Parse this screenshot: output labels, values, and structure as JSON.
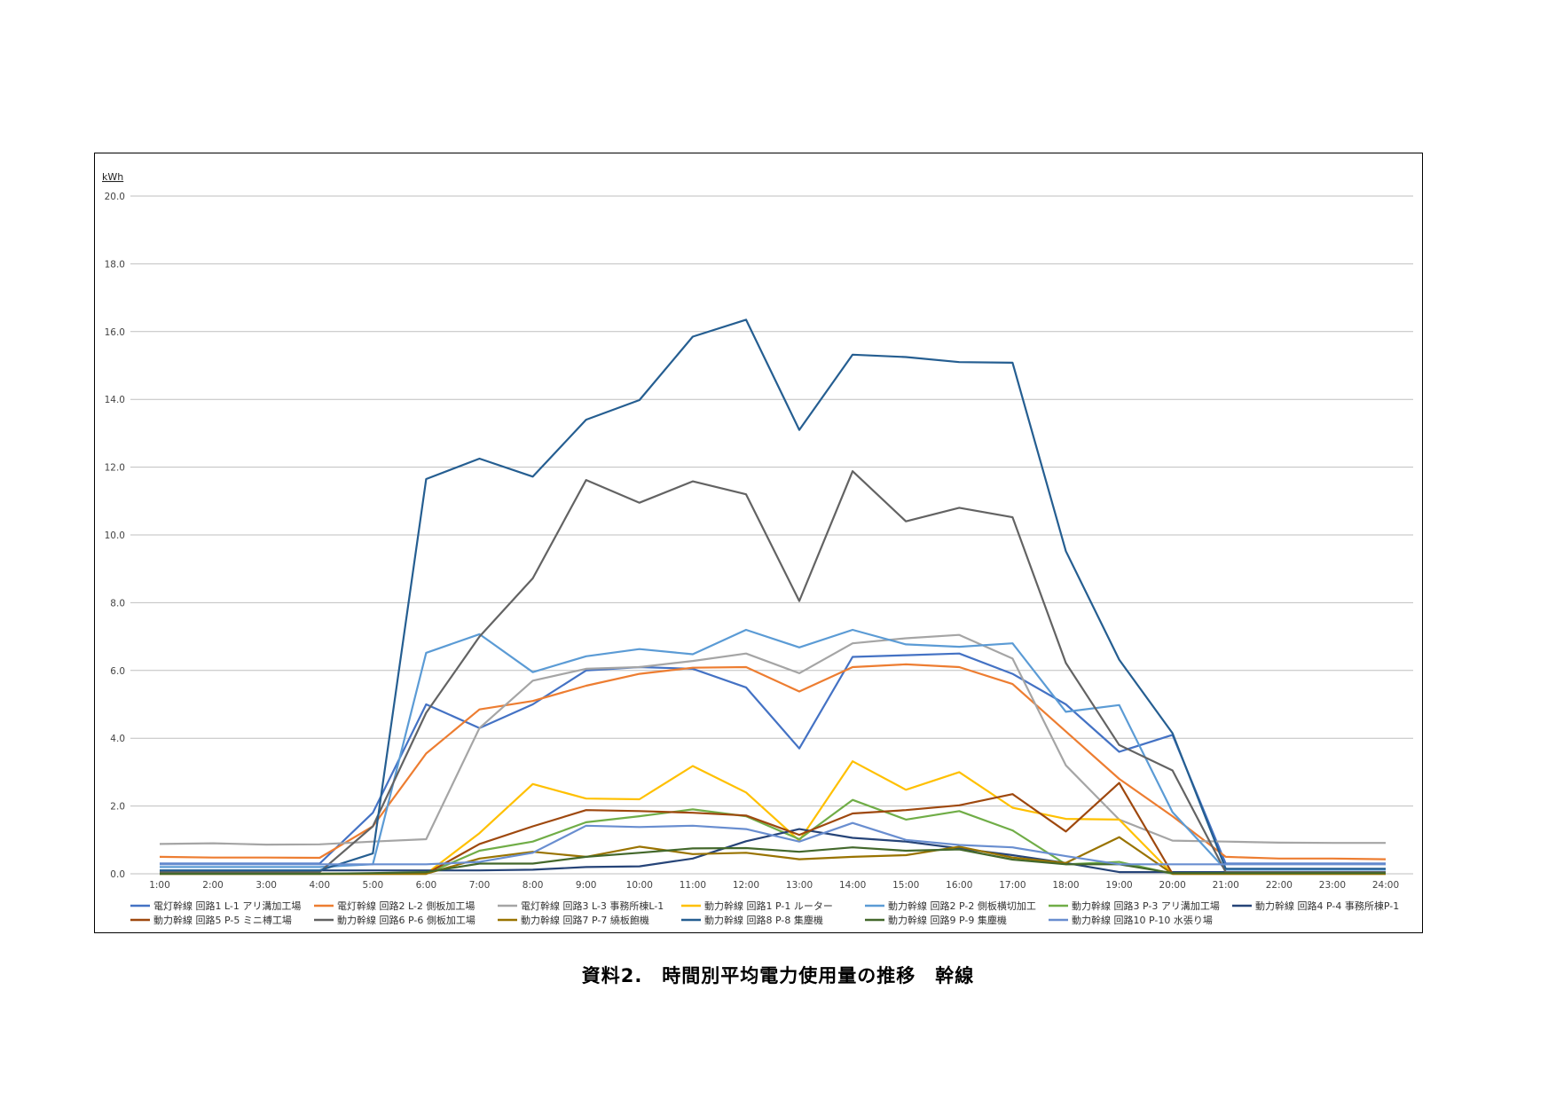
{
  "caption": "資料2.　時間別平均電力使用量の推移　幹線",
  "chart_data": {
    "type": "line",
    "ylabel_unit": "kWh",
    "ylim": [
      0,
      20
    ],
    "yticks": [
      "0.0",
      "2.0",
      "4.0",
      "6.0",
      "8.0",
      "10.0",
      "12.0",
      "14.0",
      "16.0",
      "18.0",
      "20.0"
    ],
    "grid": true,
    "legend_position": "bottom",
    "categories": [
      "1:00",
      "2:00",
      "3:00",
      "4:00",
      "5:00",
      "6:00",
      "7:00",
      "8:00",
      "9:00",
      "10:00",
      "11:00",
      "12:00",
      "13:00",
      "14:00",
      "15:00",
      "16:00",
      "17:00",
      "18:00",
      "19:00",
      "20:00",
      "21:00",
      "22:00",
      "23:00",
      "24:00"
    ],
    "series": [
      {
        "name": "電灯幹線 回路1 L-1 アリ溝加工場",
        "color": "#4472c4",
        "values": [
          0.3,
          0.3,
          0.3,
          0.3,
          1.8,
          5.0,
          4.3,
          5.0,
          6.0,
          6.1,
          6.05,
          5.5,
          3.7,
          6.4,
          6.45,
          6.5,
          5.9,
          5.0,
          3.6,
          4.1,
          0.3,
          0.3,
          0.3,
          0.3
        ]
      },
      {
        "name": "電灯幹線 回路2 L-2 側板加工場",
        "color": "#ed7d31",
        "values": [
          0.5,
          0.48,
          0.48,
          0.47,
          1.4,
          3.55,
          4.85,
          5.1,
          5.55,
          5.9,
          6.08,
          6.1,
          5.38,
          6.1,
          6.18,
          6.1,
          5.6,
          4.2,
          2.8,
          1.7,
          0.5,
          0.45,
          0.45,
          0.43
        ]
      },
      {
        "name": "電灯幹線 回路3 L-3 事務所棟L-1",
        "color": "#a5a5a5",
        "values": [
          0.88,
          0.9,
          0.86,
          0.87,
          0.95,
          1.02,
          4.3,
          5.7,
          6.05,
          6.1,
          6.28,
          6.5,
          5.92,
          6.8,
          6.95,
          7.05,
          6.35,
          3.2,
          1.6,
          0.98,
          0.95,
          0.92,
          0.91,
          0.91
        ]
      },
      {
        "name": "動力幹線 回路1 P-1 ルーター",
        "color": "#ffc000",
        "values": [
          0,
          0,
          0,
          0,
          0,
          0,
          1.2,
          2.65,
          2.22,
          2.2,
          3.18,
          2.4,
          0.98,
          3.32,
          2.48,
          3.0,
          1.95,
          1.62,
          1.6,
          0,
          0,
          0,
          0,
          0
        ]
      },
      {
        "name": "動力幹線 回路2 P-2 側板横切加工",
        "color": "#5b9bd5",
        "values": [
          0.2,
          0.2,
          0.2,
          0.2,
          0.28,
          6.52,
          7.07,
          5.95,
          6.42,
          6.63,
          6.48,
          7.2,
          6.68,
          7.2,
          6.77,
          6.7,
          6.8,
          4.78,
          4.98,
          1.82,
          0.12,
          0.12,
          0.12,
          0.12
        ]
      },
      {
        "name": "動力幹線 回路3 P-3 アリ溝加工場",
        "color": "#70ad47",
        "values": [
          0,
          0,
          0,
          0,
          0,
          0,
          0.68,
          0.95,
          1.52,
          1.7,
          1.9,
          1.7,
          1.02,
          2.18,
          1.6,
          1.85,
          1.28,
          0.28,
          0.35,
          0,
          0,
          0,
          0,
          0
        ]
      },
      {
        "name": "動力幹線 回路4 P-4 事務所棟P-1",
        "color": "#264478",
        "values": [
          0.1,
          0.1,
          0.1,
          0.1,
          0.1,
          0.1,
          0.1,
          0.12,
          0.2,
          0.22,
          0.45,
          0.96,
          1.32,
          1.06,
          0.95,
          0.75,
          0.55,
          0.32,
          0.05,
          0.05,
          0.05,
          0.05,
          0.05,
          0.05
        ]
      },
      {
        "name": "動力幹線 回路5 P-5 ミニ榑工場",
        "color": "#9e480e",
        "values": [
          0,
          0,
          0,
          0,
          0,
          0,
          0.88,
          1.4,
          1.88,
          1.85,
          1.8,
          1.72,
          1.15,
          1.78,
          1.88,
          2.02,
          2.35,
          1.25,
          2.68,
          0,
          0,
          0,
          0,
          0
        ]
      },
      {
        "name": "動力幹線 回路6 P-6 側板加工場",
        "color": "#636363",
        "values": [
          0.05,
          0.05,
          0.05,
          0.05,
          1.4,
          4.75,
          7.0,
          8.72,
          11.62,
          10.95,
          11.58,
          11.2,
          8.05,
          11.88,
          10.4,
          10.8,
          10.52,
          6.22,
          3.8,
          3.05,
          0.05,
          0.05,
          0.05,
          0.05
        ]
      },
      {
        "name": "動力幹線 回路7 P-7 繞板飽機",
        "color": "#997300",
        "values": [
          0,
          0,
          0,
          0,
          0,
          0,
          0.45,
          0.65,
          0.5,
          0.8,
          0.58,
          0.62,
          0.43,
          0.5,
          0.55,
          0.8,
          0.48,
          0.32,
          1.08,
          0,
          0,
          0,
          0,
          0
        ]
      },
      {
        "name": "動力幹線 回路8 P-8 集塵機",
        "color": "#255e91",
        "values": [
          0.1,
          0.1,
          0.1,
          0.1,
          0.6,
          11.65,
          12.25,
          11.72,
          13.4,
          13.98,
          15.85,
          16.35,
          13.1,
          15.32,
          15.25,
          15.1,
          15.08,
          9.52,
          6.32,
          4.15,
          0.15,
          0.15,
          0.15,
          0.15
        ]
      },
      {
        "name": "動力幹線 回路9 P-9 集塵機",
        "color": "#43682b",
        "values": [
          0,
          0,
          0,
          0,
          0.02,
          0.05,
          0.3,
          0.3,
          0.5,
          0.62,
          0.75,
          0.76,
          0.65,
          0.78,
          0.68,
          0.72,
          0.42,
          0.28,
          0.28,
          0.02,
          0.02,
          0.02,
          0.02,
          0.02
        ]
      },
      {
        "name": "動力幹線 回路10 P-10 水張り場",
        "color": "#698ed0",
        "values": [
          0.28,
          0.28,
          0.28,
          0.28,
          0.28,
          0.28,
          0.35,
          0.62,
          1.42,
          1.38,
          1.42,
          1.32,
          0.95,
          1.5,
          1.0,
          0.85,
          0.78,
          0.52,
          0.28,
          0.28,
          0.28,
          0.28,
          0.28,
          0.28
        ]
      }
    ]
  }
}
